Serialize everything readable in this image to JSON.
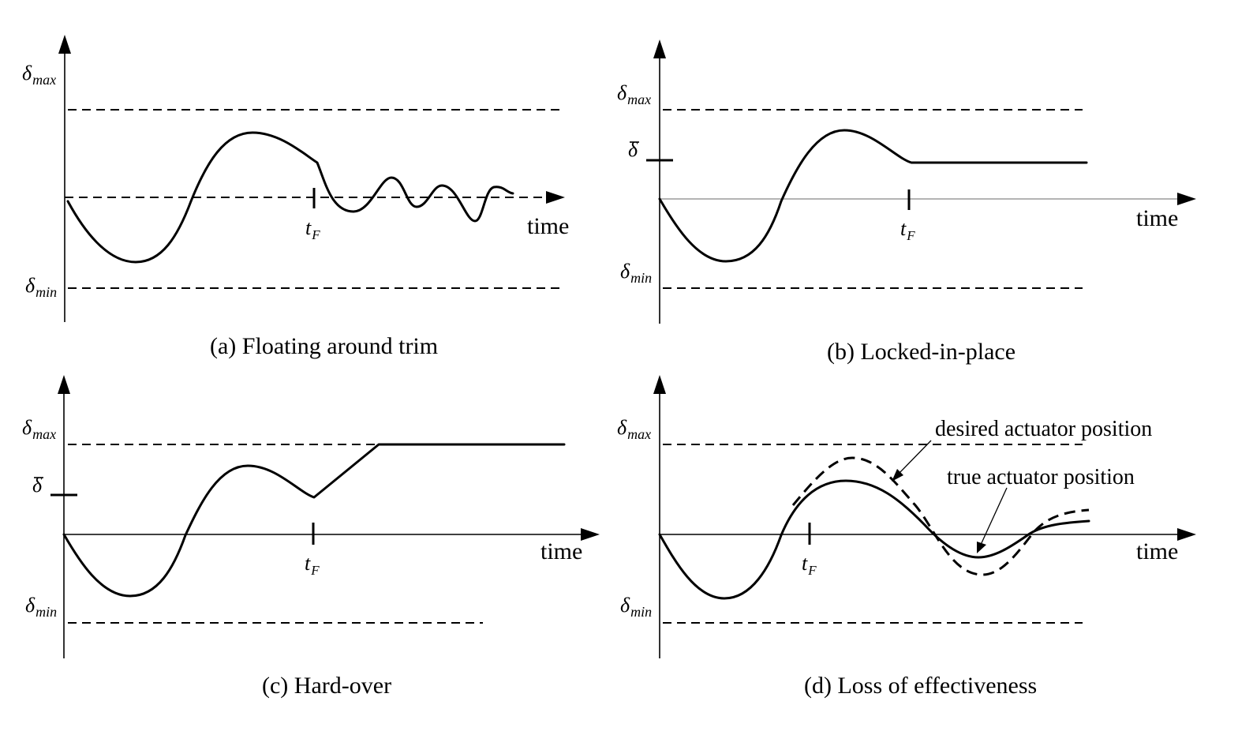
{
  "panels": {
    "a": {
      "caption": "(a) Floating around trim",
      "delta_max": {
        "base": "δ",
        "sub": "max"
      },
      "delta_min": {
        "base": "δ",
        "sub": "min"
      },
      "t_fault": {
        "base": "t",
        "sub": "F"
      },
      "time_label": "time"
    },
    "b": {
      "caption": "(b) Locked-in-place",
      "delta_max": {
        "base": "δ",
        "sub": "max"
      },
      "delta_min": {
        "base": "δ",
        "sub": "min"
      },
      "delta_bar": "δ",
      "t_fault": {
        "base": "t",
        "sub": "F"
      },
      "time_label": "time"
    },
    "c": {
      "caption": "(c) Hard-over",
      "delta_max": {
        "base": "δ",
        "sub": "max"
      },
      "delta_min": {
        "base": "δ",
        "sub": "min"
      },
      "delta_bar": "δ",
      "t_fault": {
        "base": "t",
        "sub": "F"
      },
      "time_label": "time"
    },
    "d": {
      "caption": "(d) Loss of effectiveness",
      "delta_max": {
        "base": "δ",
        "sub": "max"
      },
      "delta_min": {
        "base": "δ",
        "sub": "min"
      },
      "t_fault": {
        "base": "t",
        "sub": "F"
      },
      "time_label": "time",
      "desired_label": "desired actuator position",
      "true_label": "true actuator position"
    }
  }
}
